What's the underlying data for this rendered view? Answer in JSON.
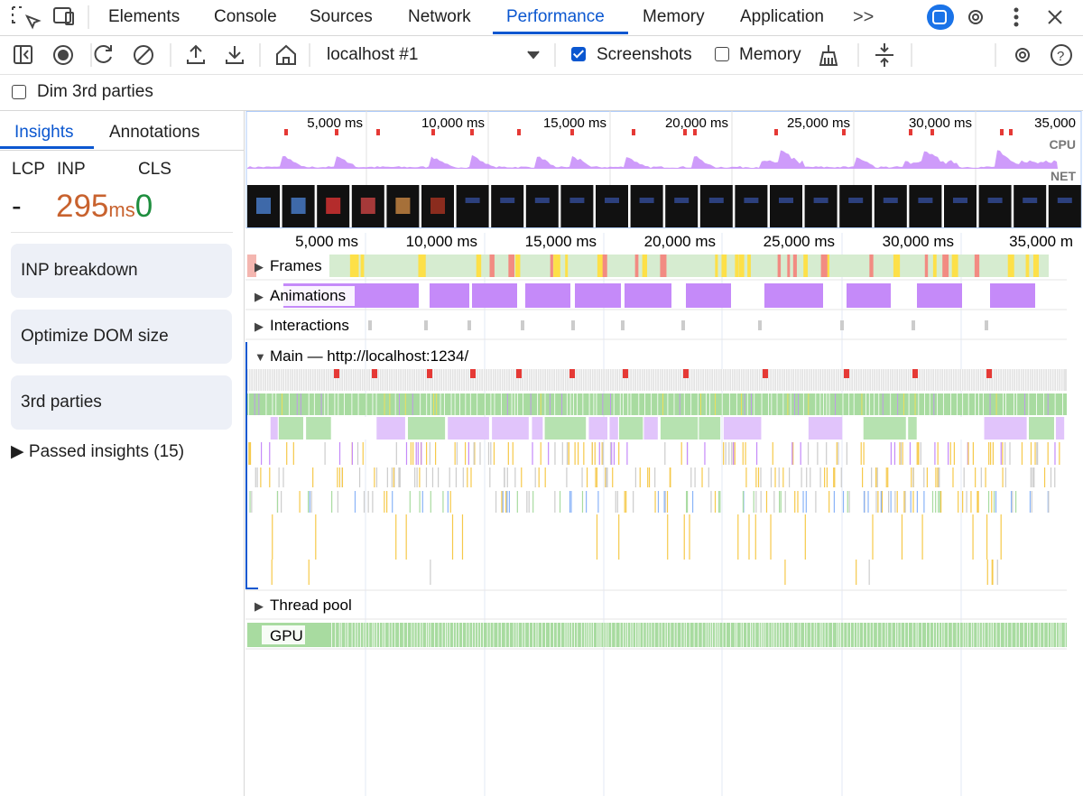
{
  "tabs": [
    "Elements",
    "Console",
    "Sources",
    "Network",
    "Performance",
    "Memory",
    "Application"
  ],
  "toolbar": {
    "recording": "localhost #1",
    "screenshots": "Screenshots",
    "screenshots_checked": true,
    "memory": "Memory",
    "memory_checked": false,
    "dim": "Dim 3rd parties",
    "dim_checked": false
  },
  "sidebar": {
    "tabs": [
      "Insights",
      "Annotations"
    ],
    "metrics": {
      "labels": [
        "LCP",
        "INP",
        "CLS"
      ],
      "lcp": "-",
      "inp": 295,
      "inp_unit": "ms",
      "cls": 0
    },
    "insights": [
      "INP breakdown",
      "Optimize DOM size",
      "3rd parties"
    ],
    "passed": "Passed insights (15)"
  },
  "overview": {
    "ticks": [
      "5,000 ms",
      "10,000 ms",
      "15,000 ms",
      "20,000 ms",
      "25,000 ms",
      "30,000 ms",
      "35,000"
    ],
    "cpu": "CPU",
    "net": "NET"
  },
  "timeline": {
    "ticks": [
      "5,000 ms",
      "10,000 ms",
      "15,000 ms",
      "20,000 ms",
      "25,000 ms",
      "30,000 ms",
      "35,000 m"
    ],
    "tracks": [
      "Frames",
      "Animations",
      "Interactions"
    ],
    "main": "Main — http://localhost:1234/",
    "thread_pool": "Thread pool",
    "gpu": "GPU"
  }
}
